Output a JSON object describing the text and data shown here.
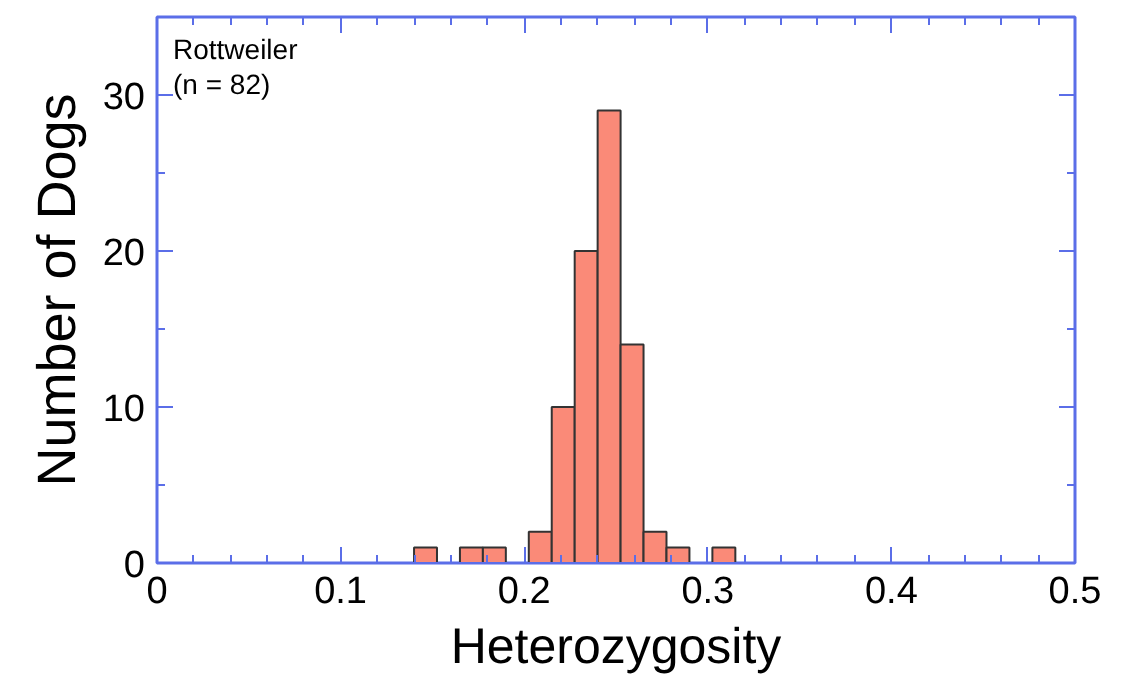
{
  "chart_data": {
    "type": "histogram",
    "xlabel": "Heterozygosity",
    "ylabel": "Number of Dogs",
    "annotations": [
      "Rottweiler\n(n = 82)"
    ],
    "bins": [
      0.14,
      0.1525,
      0.165,
      0.1775,
      0.19,
      0.2025,
      0.215,
      0.2275,
      0.24,
      0.2525,
      0.265,
      0.2775,
      0.29,
      0.3025,
      0.315
    ],
    "values": [
      1,
      0,
      1,
      1,
      0,
      2,
      10,
      20,
      29,
      14,
      2,
      1,
      0,
      1
    ],
    "color": "#fa8a78",
    "xlim": [
      0,
      0.5
    ],
    "xticks": [
      0,
      0.1,
      0.2,
      0.3,
      0.4,
      0.5
    ],
    "ylim": [
      0,
      35
    ],
    "yticks": [
      0,
      10,
      20,
      30
    ],
    "grid": false
  }
}
